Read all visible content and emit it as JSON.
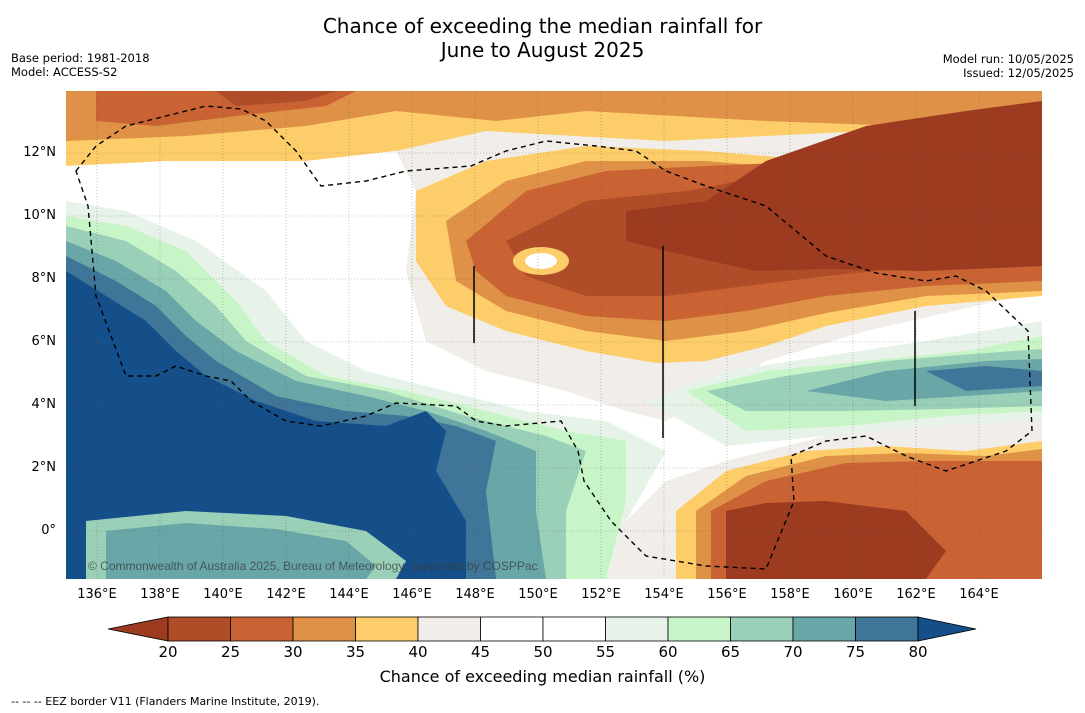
{
  "header": {
    "title_line1": "Chance of exceeding the median rainfall for",
    "title_line2": "June to August 2025",
    "base_period": "Base period: 1981-2018",
    "model": "Model: ACCESS-S2",
    "model_run": "Model run: 10/05/2025",
    "issued": "Issued: 12/05/2025"
  },
  "map": {
    "lat_labels": [
      "12°N",
      "10°N",
      "8°N",
      "6°N",
      "4°N",
      "2°N",
      "0°"
    ],
    "lon_labels": [
      "136°E",
      "138°E",
      "140°E",
      "142°E",
      "144°E",
      "146°E",
      "148°E",
      "150°E",
      "152°E",
      "154°E",
      "156°E",
      "158°E",
      "160°E",
      "162°E",
      "164°E"
    ],
    "lon_range": [
      135.1,
      166.2
    ],
    "lat_range": [
      -1.5,
      13.9
    ],
    "copyright": "© Commonwealth of Australia 2025, Bureau of Meteorology, supported by COSPPac"
  },
  "colorbar": {
    "ticks": [
      "20",
      "25",
      "30",
      "35",
      "40",
      "45",
      "50",
      "55",
      "60",
      "65",
      "70",
      "75",
      "80"
    ],
    "colors": [
      "#9c3b1f",
      "#b04d29",
      "#c96333",
      "#df9147",
      "#fdcd6a",
      "#f1ede8",
      "#ffffff",
      "#ffffff",
      "#e7f3e8",
      "#c8f5c8",
      "#9ad0b8",
      "#69a6a8",
      "#3e7598",
      "#154f8a"
    ],
    "title": "Chance of exceeding median rainfall (%)"
  },
  "footer": {
    "legend_note": "--  --  -- EEZ border V11 (Flanders Marine Institute, 2019)."
  }
}
